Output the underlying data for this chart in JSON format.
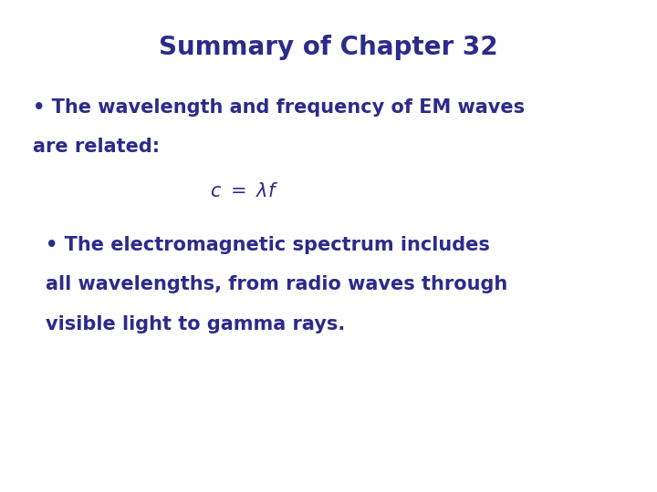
{
  "title": "Summary of Chapter 32",
  "title_color": "#2B2B8B",
  "title_fontsize": 20,
  "background_color": "#ffffff",
  "text_color": "#2B2B8B",
  "bullet1_line1": "• The wavelength and frequency of EM waves",
  "bullet1_line2": "are related:",
  "equation": "$c \\ = \\ \\lambda f$",
  "bullet2_line1": "• The electromagnetic spectrum includes",
  "bullet2_line2": "all wavelengths, from radio waves through",
  "bullet2_line3": "visible light to gamma rays.",
  "body_fontsize": 15,
  "eq_fontsize": 15,
  "figsize": [
    7.2,
    5.4
  ],
  "dpi": 100
}
